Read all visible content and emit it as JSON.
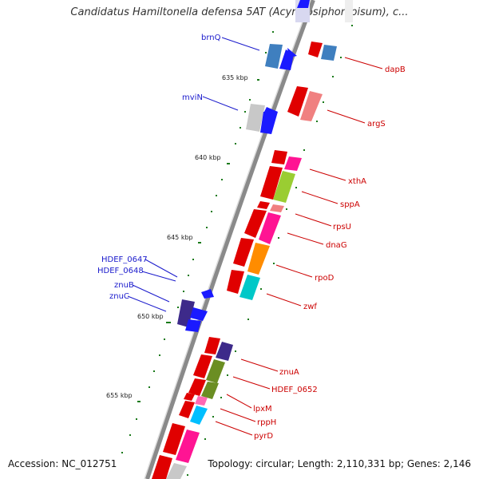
{
  "title": "Candidatus Hamiltonella defensa 5AT (Acyrthosiphon pisum), c...",
  "footer": {
    "accession": "Accession: NC_012751",
    "summary": "Topology: circular; Length: 2,110,331 bp; Genes: 2,146"
  },
  "colors": {
    "left_label": "#1a1acc",
    "right_label": "#cc0000",
    "backbone": "#8a8a8a",
    "tick": "#1a7a1a"
  },
  "kbp_labels": [
    "635 kbp",
    "640 kbp",
    "645 kbp",
    "650 kbp",
    "655 kbp"
  ],
  "genes_left": [
    {
      "name": "brnQ",
      "color": "#3f7fbf"
    },
    {
      "name": "mviN",
      "color": "#c8c8c8"
    },
    {
      "name": "HDEF_0647",
      "color": "#1a1aff"
    },
    {
      "name": "HDEF_0648",
      "color": "#1a1aff"
    },
    {
      "name": "znuB",
      "color": "#3d2a8a"
    },
    {
      "name": "znuC",
      "color": "#1a1aff"
    }
  ],
  "genes_right": [
    {
      "name": "dapB",
      "color": "#e00000"
    },
    {
      "name": "argS",
      "color": "#f08080"
    },
    {
      "name": "xthA",
      "color": "#ff1493"
    },
    {
      "name": "sppA",
      "color": "#9acd32"
    },
    {
      "name": "rpsU",
      "color": "#f08080"
    },
    {
      "name": "dnaG",
      "color": "#ff1493"
    },
    {
      "name": "rpoD",
      "color": "#ff8c00"
    },
    {
      "name": "zwf",
      "color": "#00c8c8"
    },
    {
      "name": "znuA",
      "color": "#3d2a8a"
    },
    {
      "name": "HDEF_0652",
      "color": "#6b8e23"
    },
    {
      "name": "lpxM",
      "color": "#6b8e23"
    },
    {
      "name": "rppH",
      "color": "#ff69b4"
    },
    {
      "name": "pyrD",
      "color": "#00bfff"
    }
  ]
}
